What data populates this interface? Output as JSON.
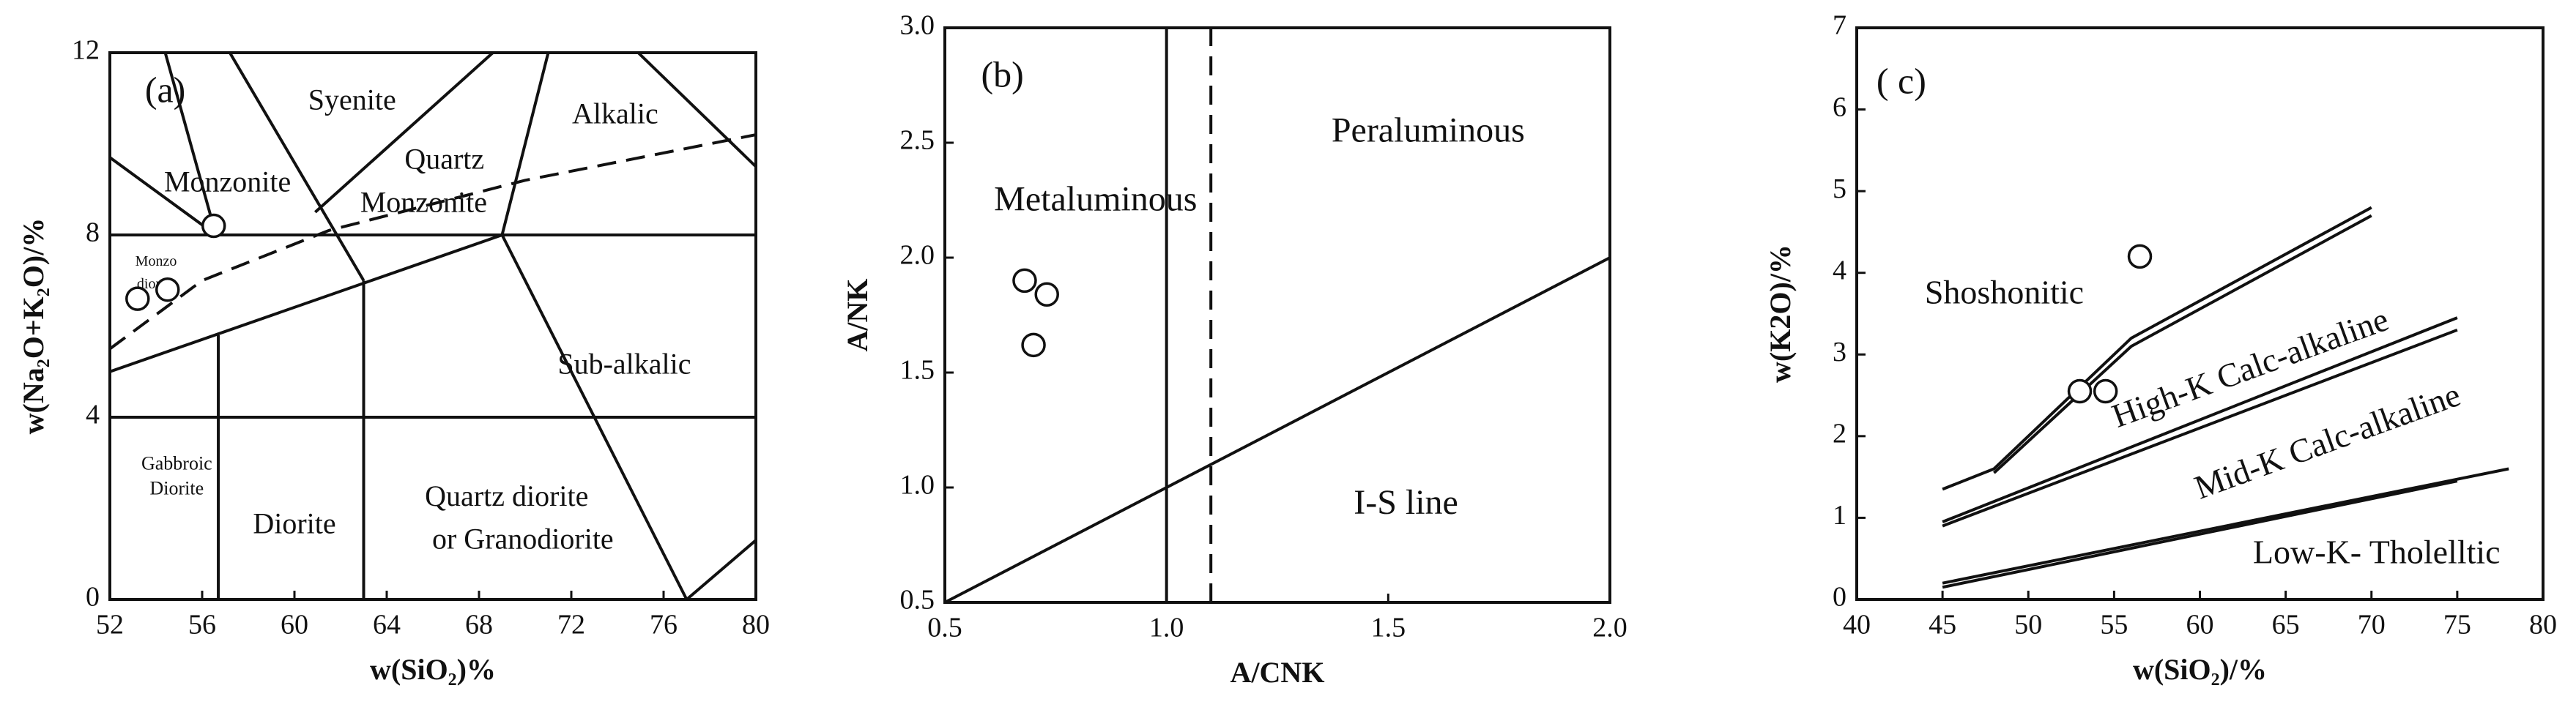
{
  "chart_data": [
    {
      "type": "scatter",
      "title": "(a)",
      "x_label": "w(SiO₂)%",
      "y_label": "w(Na₂O+K₂O)/%",
      "x": [
        56.5,
        53.2,
        54.5
      ],
      "values": [
        8.2,
        6.6,
        6.8
      ],
      "xlim": [
        52,
        80
      ],
      "ylim": [
        0,
        12
      ],
      "xticks": [
        52,
        56,
        60,
        64,
        68,
        72,
        76,
        80
      ],
      "yticks": [
        0,
        4,
        8,
        12
      ],
      "annotations": [
        "Syenite",
        "Alkalic",
        "Monzonite",
        "Quartz",
        "Monzonite",
        "Monzo",
        "diorite",
        "Sub-alkalic",
        "Gabbroic",
        "Diorite",
        "Diorite",
        "Quartz diorite",
        "or Granodiorite"
      ]
    },
    {
      "type": "scatter",
      "title": "(b)",
      "x_label": "A/CNK",
      "y_label": "A/NK",
      "x": [
        0.68,
        0.73,
        0.7
      ],
      "values": [
        1.9,
        1.84,
        1.62
      ],
      "xlim": [
        0.5,
        2.0
      ],
      "ylim": [
        0.5,
        3.0
      ],
      "xticks": [
        {
          "value": 0.5,
          "label": "0.5"
        },
        {
          "value": 1,
          "label": "1.0"
        },
        {
          "value": 1.5,
          "label": "1.5"
        },
        {
          "value": 2,
          "label": "2.0"
        }
      ],
      "yticks": [
        {
          "value": 0.5,
          "label": "0.5"
        },
        {
          "value": 1,
          "label": "1.0"
        },
        {
          "value": 1.5,
          "label": "1.5"
        },
        {
          "value": 2,
          "label": "2.0"
        },
        {
          "value": 2.5,
          "label": "2.5"
        },
        {
          "value": 3,
          "label": "3.0"
        }
      ],
      "annotations": [
        "Peraluminous",
        "Metaluminous",
        "I-S line"
      ]
    },
    {
      "type": "scatter",
      "title": "( c)",
      "x_label": "w(SiO₂)/%",
      "y_label": "w(K2O)/%",
      "x": [
        56.5,
        53,
        54.5
      ],
      "values": [
        4.2,
        2.55,
        2.55
      ],
      "xlim": [
        40,
        80
      ],
      "ylim": [
        0,
        7
      ],
      "xticks": [
        40,
        45,
        50,
        55,
        60,
        65,
        70,
        75,
        80
      ],
      "yticks": [
        0,
        1,
        2,
        3,
        4,
        5,
        6,
        7
      ],
      "annotations": [
        "Shoshonitic",
        "High-K Calc-alkaline",
        "Mid-K Calc-alkaline",
        "Low-K- Tholelltic"
      ]
    }
  ]
}
